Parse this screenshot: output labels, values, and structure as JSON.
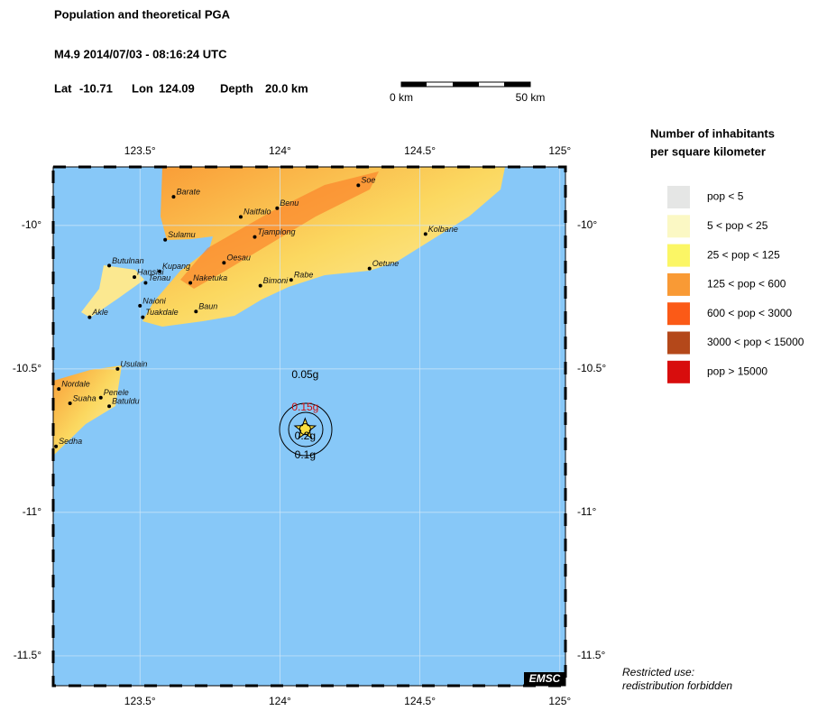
{
  "header": {
    "title": "Population and theoretical PGA",
    "event": "M4.9  2014/07/03 - 08:16:24 UTC",
    "location": [
      {
        "label": "Lat",
        "value": -10.71
      },
      {
        "label": "Lon",
        "value": 124.09
      },
      {
        "label": "Depth",
        "value": "20.0 km"
      }
    ]
  },
  "scale_bar": {
    "start": "0 km",
    "end": "50 km"
  },
  "map": {
    "xlim": [
      123.19,
      125.02
    ],
    "ylim": [
      -9.796,
      -11.604
    ],
    "grid": true,
    "xticks": [
      {
        "value": 123.5,
        "label": "123.5°"
      },
      {
        "value": 124,
        "label": "124°"
      },
      {
        "value": 124.5,
        "label": "124.5°"
      },
      {
        "value": 125,
        "label": "125°"
      }
    ],
    "yticks": [
      {
        "value": -10,
        "label": "-10°"
      },
      {
        "value": -10.5,
        "label": "-10.5°"
      },
      {
        "value": -11,
        "label": "-11°"
      },
      {
        "value": -11.5,
        "label": "-11.5°"
      }
    ],
    "cities": [
      {
        "name": "Barate",
        "lon": 123.62,
        "lat": -9.9
      },
      {
        "name": "Naitfalo",
        "lon": 123.86,
        "lat": -9.97
      },
      {
        "name": "Benu",
        "lon": 123.99,
        "lat": -9.94
      },
      {
        "name": "Soe",
        "lon": 124.28,
        "lat": -9.86
      },
      {
        "name": "Kolbane",
        "lon": 124.52,
        "lat": -10.03
      },
      {
        "name": "Sulamu",
        "lon": 123.59,
        "lat": -10.05
      },
      {
        "name": "Tjamplong",
        "lon": 123.91,
        "lat": -10.04
      },
      {
        "name": "Oesau",
        "lon": 123.8,
        "lat": -10.13
      },
      {
        "name": "Oetune",
        "lon": 124.32,
        "lat": -10.15
      },
      {
        "name": "Butulnan",
        "lon": 123.39,
        "lat": -10.14
      },
      {
        "name": "Hansisi",
        "lon": 123.48,
        "lat": -10.18
      },
      {
        "name": "Kupang",
        "lon": 123.57,
        "lat": -10.16
      },
      {
        "name": "Tenau",
        "lon": 123.52,
        "lat": -10.2
      },
      {
        "name": "Naketuka",
        "lon": 123.68,
        "lat": -10.2
      },
      {
        "name": "Bimoni",
        "lon": 123.93,
        "lat": -10.21
      },
      {
        "name": "Rabe",
        "lon": 124.04,
        "lat": -10.19
      },
      {
        "name": "Naioni",
        "lon": 123.5,
        "lat": -10.28
      },
      {
        "name": "Baun",
        "lon": 123.7,
        "lat": -10.3
      },
      {
        "name": "Akle",
        "lon": 123.32,
        "lat": -10.32
      },
      {
        "name": "Tuakdale",
        "lon": 123.51,
        "lat": -10.32
      },
      {
        "name": "Usulain",
        "lon": 123.42,
        "lat": -10.5
      },
      {
        "name": "Nordale",
        "lon": 123.21,
        "lat": -10.57
      },
      {
        "name": "Suaha",
        "lon": 123.25,
        "lat": -10.62
      },
      {
        "name": "Penele",
        "lon": 123.36,
        "lat": -10.6
      },
      {
        "name": "Batuldu",
        "lon": 123.39,
        "lat": -10.63
      },
      {
        "name": "Sedha",
        "lon": 123.2,
        "lat": -10.77
      }
    ],
    "pga_labels": [
      "0.05g",
      "0.15g",
      "0.2g",
      "0.1g"
    ],
    "badge": "EMSC"
  },
  "legend": {
    "title": [
      "Number of inhabitants",
      "per square kilometer"
    ],
    "items": [
      {
        "label": "pop < 5",
        "color": "#e5e6e5"
      },
      {
        "label": "5 < pop < 25",
        "color": "#fbf8c4"
      },
      {
        "label": "25 < pop < 125",
        "color": "#fbf665"
      },
      {
        "label": "125 < pop < 600",
        "color": "#f99a35"
      },
      {
        "label": "600 < pop < 3000",
        "color": "#fb5a17"
      },
      {
        "label": "3000 < pop < 15000",
        "color": "#b4481a"
      },
      {
        "label": "pop > 15000",
        "color": "#d80d0d"
      }
    ]
  },
  "footer": [
    "Restricted use:",
    "redistribution forbidden"
  ]
}
